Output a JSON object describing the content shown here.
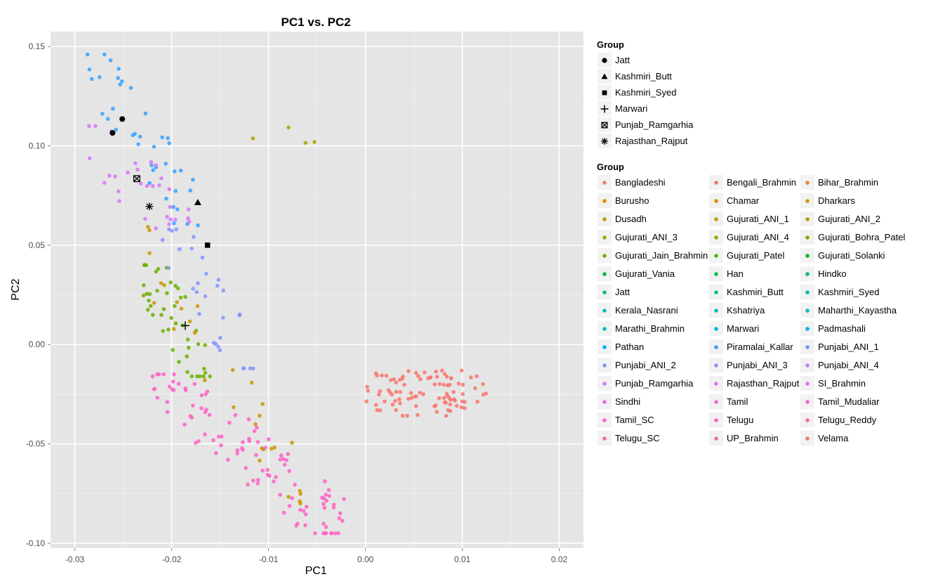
{
  "chart_data": {
    "type": "scatter",
    "title": "PC1 vs. PC2",
    "xlabel": "PC1",
    "ylabel": "PC2",
    "xlim": [
      -0.0325,
      0.0225
    ],
    "ylim": [
      -0.1025,
      0.1575
    ],
    "x_ticks": [
      -0.03,
      -0.02,
      -0.01,
      0.0,
      0.01,
      0.02
    ],
    "x_tick_labels": [
      "-0.03",
      "-0.02",
      "-0.01",
      "0.00",
      "0.01",
      "0.02"
    ],
    "y_ticks": [
      -0.1,
      -0.05,
      0.0,
      0.05,
      0.1,
      0.15
    ],
    "y_tick_labels": [
      "-0.10",
      "-0.05",
      "0.00",
      "0.05",
      "0.10",
      "0.15"
    ],
    "grid": true,
    "legend_position": "right",
    "shape_legend": {
      "title": "Group",
      "entries": [
        {
          "name": "Jatt",
          "shape": "circle"
        },
        {
          "name": "Kashmiri_Butt",
          "shape": "triangle"
        },
        {
          "name": "Kashmiri_Syed",
          "shape": "square"
        },
        {
          "name": "Marwari",
          "shape": "plus"
        },
        {
          "name": "Punjab_Ramgarhia",
          "shape": "boxed-x"
        },
        {
          "name": "Rajasthan_Rajput",
          "shape": "asterisk"
        }
      ]
    },
    "highlight_points": [
      {
        "group": "Jatt",
        "shape": "circle",
        "x": -0.0251,
        "y": 0.1135
      },
      {
        "group": "Jatt",
        "shape": "circle",
        "x": -0.0261,
        "y": 0.1065
      },
      {
        "group": "Kashmiri_Butt",
        "shape": "triangle",
        "x": -0.0173,
        "y": 0.0715
      },
      {
        "group": "Kashmiri_Syed",
        "shape": "square",
        "x": -0.0163,
        "y": 0.05
      },
      {
        "group": "Marwari",
        "shape": "plus",
        "x": -0.0186,
        "y": 0.0095
      },
      {
        "group": "Punjab_Ramgarhia",
        "shape": "boxed-x",
        "x": -0.0236,
        "y": 0.0835
      },
      {
        "group": "Rajasthan_Rajput",
        "shape": "asterisk",
        "x": -0.0223,
        "y": 0.0695
      }
    ],
    "color_legend": {
      "title": "Group",
      "entries": [
        {
          "name": "Bangladeshi",
          "color": "#F8766D"
        },
        {
          "name": "Bengali_Brahmin",
          "color": "#F37B59"
        },
        {
          "name": "Bihar_Brahmin",
          "color": "#ED813E"
        },
        {
          "name": "Burusho",
          "color": "#E58700"
        },
        {
          "name": "Chamar",
          "color": "#DE8C00"
        },
        {
          "name": "Dharkars",
          "color": "#D39200"
        },
        {
          "name": "Dusadh",
          "color": "#C99800"
        },
        {
          "name": "Gujurati_ANI_1",
          "color": "#BB9D00"
        },
        {
          "name": "Gujurati_ANI_2",
          "color": "#ADA200"
        },
        {
          "name": "Gujurati_ANI_3",
          "color": "#A3A500"
        },
        {
          "name": "Gujurati_ANI_4",
          "color": "#93AA00"
        },
        {
          "name": "Gujurati_Bohra_Patel",
          "color": "#7FAE00"
        },
        {
          "name": "Gujurati_Jain_Brahmin",
          "color": "#6BB100"
        },
        {
          "name": "Gujurati_Patel",
          "color": "#4FB500"
        },
        {
          "name": "Gujurati_Solanki",
          "color": "#00B81F"
        },
        {
          "name": "Gujurati_Vania",
          "color": "#00BA42"
        },
        {
          "name": "Han",
          "color": "#00BC59"
        },
        {
          "name": "Hindko",
          "color": "#00BE6C"
        },
        {
          "name": "Jatt",
          "color": "#00BF7D"
        },
        {
          "name": "Kashmiri_Butt",
          "color": "#00C08E"
        },
        {
          "name": "Kashmiri_Syed",
          "color": "#00C19F"
        },
        {
          "name": "Kerala_Nasrani",
          "color": "#00C1AD"
        },
        {
          "name": "Kshatriya",
          "color": "#00C0BB"
        },
        {
          "name": "Maharthi_Kayastha",
          "color": "#00BFC4"
        },
        {
          "name": "Marathi_Brahmin",
          "color": "#00BCD4"
        },
        {
          "name": "Marwari",
          "color": "#00B8E5"
        },
        {
          "name": "Padmashali",
          "color": "#00B4EF"
        },
        {
          "name": "Pathan",
          "color": "#00ADFA"
        },
        {
          "name": "Piramalai_Kallar",
          "color": "#35A2FF"
        },
        {
          "name": "Punjabi_ANI_1",
          "color": "#619CFF"
        },
        {
          "name": "Punjabi_ANI_2",
          "color": "#8494FF"
        },
        {
          "name": "Punjabi_ANI_3",
          "color": "#9E8AFF"
        },
        {
          "name": "Punjabi_ANI_4",
          "color": "#B983FF"
        },
        {
          "name": "Punjab_Ramgarhia",
          "color": "#C77CFF"
        },
        {
          "name": "Rajasthan_Rajput",
          "color": "#D774FD"
        },
        {
          "name": "SI_Brahmin",
          "color": "#E76BF3"
        },
        {
          "name": "Sindhi",
          "color": "#F066EA"
        },
        {
          "name": "Tamil",
          "color": "#F863DF"
        },
        {
          "name": "Tamil_Mudaliar",
          "color": "#FD61D1"
        },
        {
          "name": "Tamil_SC",
          "color": "#FF61C3"
        },
        {
          "name": "Telugu",
          "color": "#FF63B6"
        },
        {
          "name": "Telugu_Reddy",
          "color": "#FF66A8"
        },
        {
          "name": "Telugu_SC",
          "color": "#FD6C99"
        },
        {
          "name": "UP_Brahmin",
          "color": "#F8718A"
        },
        {
          "name": "Velama",
          "color": "#F8766D"
        }
      ]
    },
    "point_clusters": [
      {
        "name": "Bangladesh / east cluster",
        "color": "#F8766D",
        "count": 95,
        "x_range": [
          0.0,
          0.0125
        ],
        "y_range": [
          -0.036,
          -0.013
        ]
      },
      {
        "name": "north-west blue cluster",
        "color": "#35A2FF",
        "count": 40,
        "x_range": [
          -0.029,
          -0.017
        ],
        "y_range": [
          0.06,
          0.146
        ]
      },
      {
        "name": "north-west purple cluster",
        "color": "#D774FD",
        "count": 30,
        "x_range": [
          -0.029,
          -0.018
        ],
        "y_range": [
          0.055,
          0.11
        ]
      },
      {
        "name": "Gujurati green cluster",
        "color": "#6BB100",
        "count": 45,
        "x_range": [
          -0.023,
          -0.016
        ],
        "y_range": [
          -0.016,
          0.04
        ]
      },
      {
        "name": "central olive cluster",
        "color": "#C99800",
        "count": 30,
        "x_range": [
          -0.025,
          -0.006
        ],
        "y_range": [
          -0.08,
          0.065
        ]
      },
      {
        "name": "central lavender cluster",
        "color": "#8494FF",
        "count": 30,
        "x_range": [
          -0.021,
          -0.011
        ],
        "y_range": [
          -0.012,
          0.058
        ]
      },
      {
        "name": "south pink cluster",
        "color": "#FF61C3",
        "count": 110,
        "x_range": [
          -0.022,
          -0.002
        ],
        "y_range": [
          -0.095,
          -0.015
        ]
      },
      {
        "name": "top-right olive points",
        "color": "#ADA200",
        "count": 4,
        "x_range": [
          -0.012,
          -0.004
        ],
        "y_range": [
          0.1,
          0.111
        ]
      }
    ]
  }
}
